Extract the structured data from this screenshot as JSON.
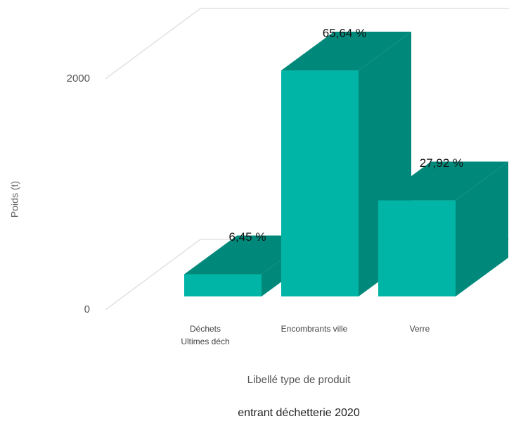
{
  "chart_data": {
    "type": "bar3d",
    "title": "entrant déchetterie 2020",
    "x_label": "Libellé type de produit",
    "y_label": "Poids (t)",
    "categories": [
      "Déchets Ultimes déch",
      "Encombrants ville",
      "Verre"
    ],
    "values": [
      192,
      1957,
      832
    ],
    "shares": [
      6.45,
      65.64,
      27.92
    ],
    "share_labels": [
      "6,45 %",
      "65,64 %",
      "27,92 %"
    ],
    "ylim": [
      0,
      2000
    ],
    "yticks": [
      0,
      2000
    ],
    "color": "#00b5a5",
    "side_color": "#00897b",
    "grid": true
  }
}
